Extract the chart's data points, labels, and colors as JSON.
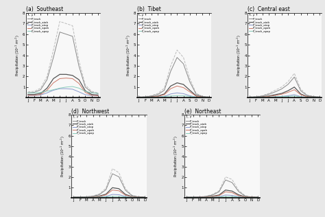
{
  "months": [
    "J",
    "F",
    "M",
    "A",
    "M",
    "J",
    "J",
    "A",
    "S",
    "O",
    "N",
    "D"
  ],
  "legend_labels": [
    "P",
    "P_track",
    "P_track_atab",
    "P_track_atop",
    "P_track_apab",
    "P_track_apap"
  ],
  "line_colors": [
    "#bbbbbb",
    "#888888",
    "#555555",
    "#8899cc",
    "#cc7766",
    "#88ccbb"
  ],
  "line_styles": [
    "--",
    "-",
    "-",
    "-",
    "-",
    "-"
  ],
  "line_widths": [
    0.7,
    0.7,
    0.9,
    0.7,
    0.7,
    0.7
  ],
  "ylim": [
    0,
    8
  ],
  "yticks": [
    0,
    1,
    2,
    3,
    4,
    5,
    6,
    7,
    8
  ],
  "series": {
    "Southeast": {
      "P": [
        0.55,
        0.6,
        0.9,
        2.0,
        4.5,
        7.2,
        7.0,
        6.8,
        3.5,
        1.2,
        0.6,
        0.45
      ],
      "P_track": [
        0.45,
        0.5,
        0.75,
        1.7,
        3.8,
        6.2,
        6.0,
        5.8,
        3.0,
        1.0,
        0.5,
        0.38
      ],
      "P_track_atab": [
        0.3,
        0.3,
        0.4,
        0.9,
        1.8,
        2.2,
        2.2,
        2.1,
        1.7,
        0.65,
        0.3,
        0.25
      ],
      "P_track_atop": [
        0.2,
        0.2,
        0.25,
        0.45,
        0.7,
        0.85,
        0.85,
        0.8,
        0.55,
        0.28,
        0.2,
        0.18
      ],
      "P_track_apab": [
        0.22,
        0.22,
        0.3,
        0.7,
        1.4,
        1.8,
        1.85,
        1.8,
        1.35,
        0.5,
        0.22,
        0.18
      ],
      "P_track_apap": [
        0.45,
        0.45,
        0.5,
        0.62,
        0.75,
        0.9,
        1.0,
        1.05,
        0.9,
        0.6,
        0.45,
        0.42
      ]
    },
    "Tibet": {
      "P": [
        0.08,
        0.1,
        0.2,
        0.4,
        0.9,
        3.0,
        4.5,
        3.8,
        1.8,
        0.4,
        0.12,
        0.08
      ],
      "P_track": [
        0.06,
        0.08,
        0.15,
        0.3,
        0.7,
        2.5,
        3.8,
        3.2,
        1.5,
        0.32,
        0.1,
        0.06
      ],
      "P_track_atab": [
        0.04,
        0.04,
        0.08,
        0.15,
        0.35,
        1.1,
        1.4,
        1.25,
        0.7,
        0.18,
        0.06,
        0.04
      ],
      "P_track_atop": [
        0.02,
        0.03,
        0.04,
        0.07,
        0.12,
        0.35,
        0.45,
        0.38,
        0.18,
        0.06,
        0.03,
        0.02
      ],
      "P_track_apab": [
        0.03,
        0.03,
        0.06,
        0.12,
        0.28,
        0.85,
        1.1,
        0.95,
        0.55,
        0.14,
        0.05,
        0.03
      ],
      "P_track_apap": [
        0.03,
        0.03,
        0.04,
        0.06,
        0.1,
        0.15,
        0.2,
        0.18,
        0.12,
        0.06,
        0.03,
        0.03
      ]
    },
    "Central east": {
      "P": [
        0.08,
        0.1,
        0.2,
        0.4,
        0.7,
        1.0,
        1.5,
        2.3,
        0.8,
        0.25,
        0.12,
        0.08
      ],
      "P_track": [
        0.06,
        0.08,
        0.15,
        0.32,
        0.55,
        0.82,
        1.25,
        1.95,
        0.65,
        0.2,
        0.1,
        0.06
      ],
      "P_track_atab": [
        0.04,
        0.05,
        0.08,
        0.16,
        0.28,
        0.4,
        0.65,
        1.0,
        0.35,
        0.1,
        0.06,
        0.04
      ],
      "P_track_atop": [
        0.02,
        0.02,
        0.03,
        0.05,
        0.08,
        0.12,
        0.18,
        0.28,
        0.1,
        0.04,
        0.03,
        0.02
      ],
      "P_track_apab": [
        0.03,
        0.03,
        0.06,
        0.12,
        0.2,
        0.32,
        0.5,
        0.75,
        0.28,
        0.08,
        0.04,
        0.03
      ],
      "P_track_apap": [
        0.04,
        0.04,
        0.05,
        0.06,
        0.08,
        0.1,
        0.12,
        0.15,
        0.08,
        0.05,
        0.04,
        0.04
      ]
    },
    "Northwest": {
      "P": [
        0.05,
        0.05,
        0.08,
        0.15,
        0.35,
        0.9,
        2.8,
        2.4,
        0.85,
        0.22,
        0.07,
        0.05
      ],
      "P_track": [
        0.04,
        0.04,
        0.06,
        0.12,
        0.28,
        0.75,
        2.3,
        2.0,
        0.7,
        0.18,
        0.06,
        0.04
      ],
      "P_track_atab": [
        0.02,
        0.02,
        0.03,
        0.06,
        0.14,
        0.32,
        0.95,
        0.85,
        0.3,
        0.08,
        0.03,
        0.02
      ],
      "P_track_atop": [
        0.01,
        0.01,
        0.02,
        0.03,
        0.05,
        0.1,
        0.3,
        0.27,
        0.1,
        0.03,
        0.01,
        0.01
      ],
      "P_track_apab": [
        0.01,
        0.01,
        0.02,
        0.04,
        0.1,
        0.25,
        0.72,
        0.65,
        0.22,
        0.06,
        0.02,
        0.01
      ],
      "P_track_apap": [
        0.01,
        0.01,
        0.02,
        0.02,
        0.04,
        0.06,
        0.1,
        0.1,
        0.05,
        0.03,
        0.01,
        0.01
      ]
    },
    "Northeast": {
      "P": [
        0.04,
        0.04,
        0.06,
        0.12,
        0.3,
        0.65,
        2.0,
        1.75,
        0.7,
        0.18,
        0.05,
        0.04
      ],
      "P_track": [
        0.03,
        0.03,
        0.05,
        0.1,
        0.24,
        0.55,
        1.7,
        1.45,
        0.58,
        0.14,
        0.04,
        0.03
      ],
      "P_track_atab": [
        0.02,
        0.02,
        0.03,
        0.05,
        0.12,
        0.24,
        0.72,
        0.62,
        0.26,
        0.07,
        0.03,
        0.02
      ],
      "P_track_atop": [
        0.01,
        0.01,
        0.02,
        0.03,
        0.04,
        0.08,
        0.24,
        0.2,
        0.09,
        0.02,
        0.01,
        0.01
      ],
      "P_track_apab": [
        0.01,
        0.01,
        0.02,
        0.04,
        0.09,
        0.18,
        0.55,
        0.47,
        0.18,
        0.05,
        0.02,
        0.01
      ],
      "P_track_apap": [
        0.01,
        0.01,
        0.01,
        0.02,
        0.03,
        0.05,
        0.08,
        0.08,
        0.04,
        0.02,
        0.01,
        0.01
      ]
    }
  },
  "background": "#e8e8e8",
  "subplot_bg": "#f8f8f8"
}
